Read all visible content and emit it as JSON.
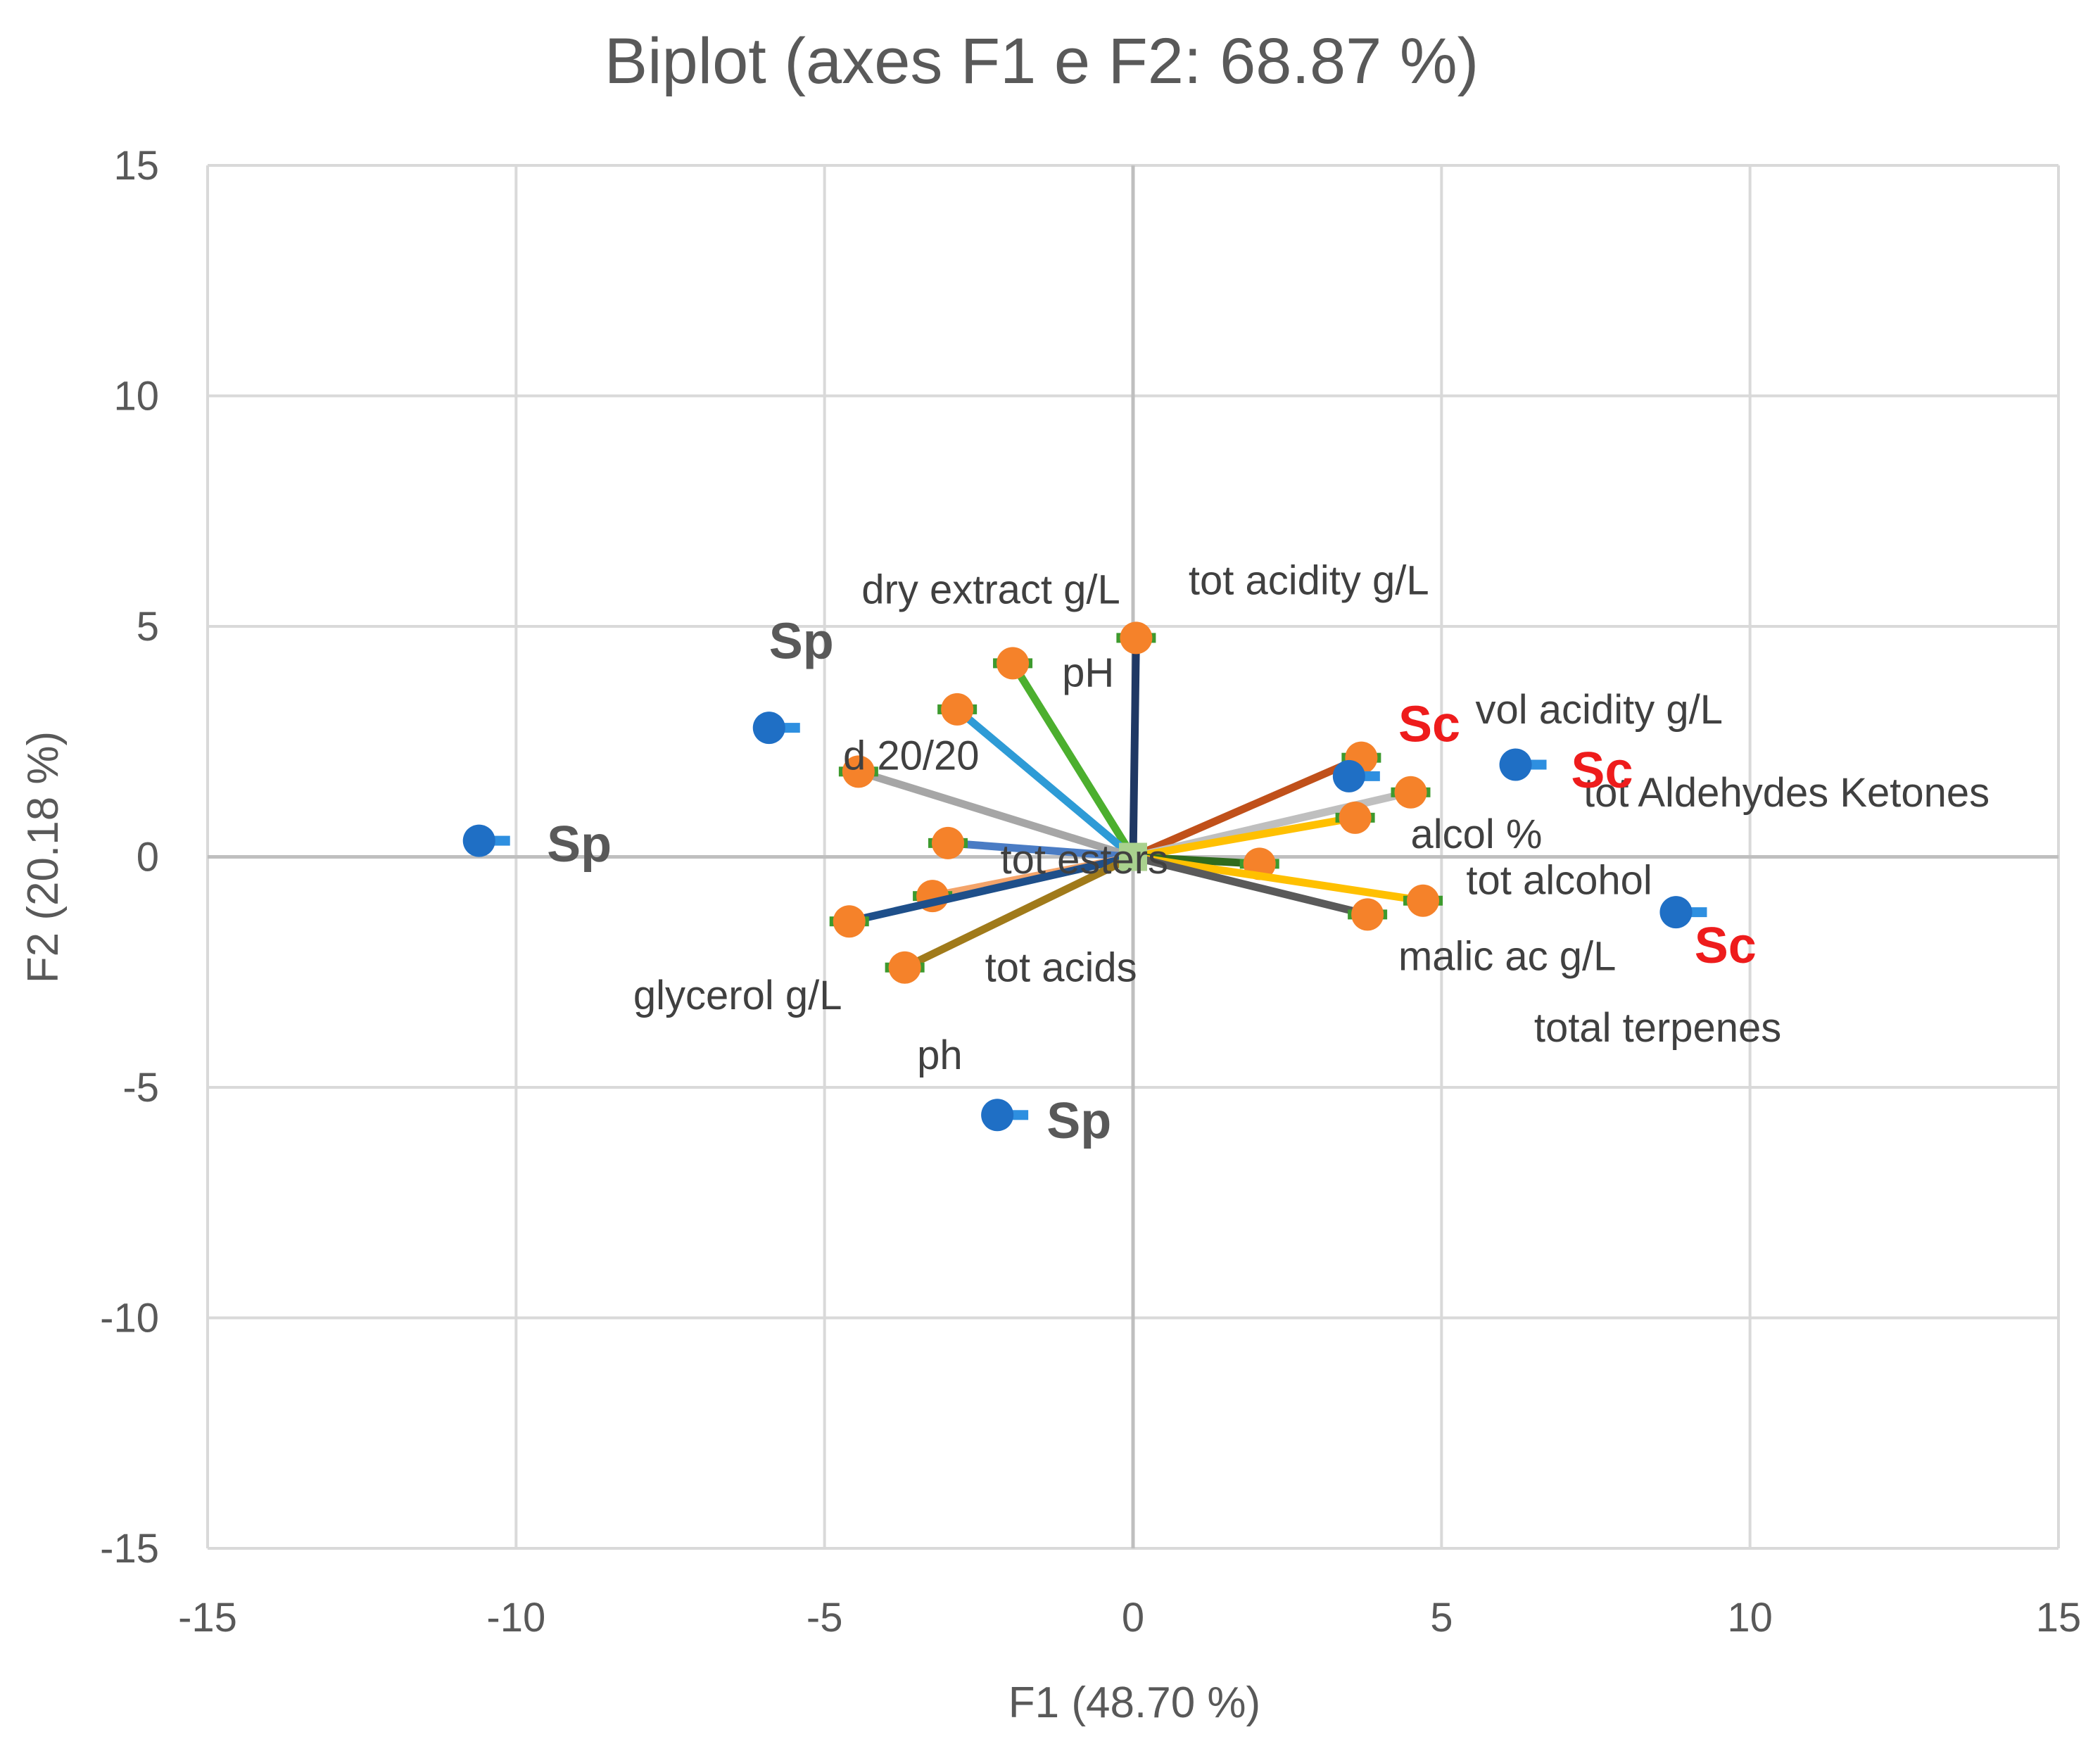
{
  "chart_data": {
    "type": "scatter",
    "title": "Biplot (axes F1 e F2: 68.87 %)",
    "xlabel": "F1 (48.70 %)",
    "ylabel": "F2 (20.18 %)",
    "xlim": [
      -15,
      15
    ],
    "ylim": [
      -15,
      15
    ],
    "xticks": [
      -15,
      -10,
      -5,
      0,
      5,
      10,
      15
    ],
    "yticks": [
      -15,
      -10,
      -5,
      0,
      5,
      10,
      15
    ],
    "grid": true,
    "colors": {
      "observation": "#1f6fc5",
      "variable_point": "#f5822a",
      "variable_point_edge": "#3d9a2e",
      "origin": "#a9d18e",
      "sc_label": "#ee1c1c",
      "sp_label": "#595959",
      "grid": "#d9d9d9",
      "zero_line": "#bfbfbf"
    },
    "observations": [
      {
        "name": "Sp",
        "x": -10.6,
        "y": 0.35
      },
      {
        "name": "Sp",
        "x": -5.9,
        "y": 2.8
      },
      {
        "name": "Sp",
        "x": -2.2,
        "y": -5.6
      },
      {
        "name": "Sc",
        "x": 3.5,
        "y": 1.75
      },
      {
        "name": "Sc",
        "x": 6.2,
        "y": 2.0
      },
      {
        "name": "Sc",
        "x": 8.8,
        "y": -1.2
      }
    ],
    "obs_labels": [
      {
        "text": "Sp",
        "x": -9.5,
        "y": 0.3,
        "group": "sp"
      },
      {
        "text": "Sp",
        "x": -5.9,
        "y": 4.7,
        "group": "sp"
      },
      {
        "text": "Sp",
        "x": -1.4,
        "y": -5.7,
        "group": "sp"
      },
      {
        "text": "Sc",
        "x": 4.3,
        "y": 2.9,
        "group": "sc"
      },
      {
        "text": "Sc",
        "x": 7.1,
        "y": 1.9,
        "group": "sc"
      },
      {
        "text": "Sc",
        "x": 9.1,
        "y": -1.9,
        "group": "sc"
      }
    ],
    "variables": [
      {
        "x": 0.05,
        "y": 4.75,
        "color": "#1f3864"
      },
      {
        "x": -1.95,
        "y": 4.2,
        "color": "#4caf2e"
      },
      {
        "x": -2.85,
        "y": 3.2,
        "color": "#2e9bd6"
      },
      {
        "x": -4.45,
        "y": 1.85,
        "color": "#a6a6a6"
      },
      {
        "x": -3.0,
        "y": 0.3,
        "color": "#4a7cc4"
      },
      {
        "x": -3.25,
        "y": -0.85,
        "color": "#f4a46a"
      },
      {
        "x": -4.6,
        "y": -1.4,
        "color": "#1e4f8a"
      },
      {
        "x": -3.7,
        "y": -2.4,
        "color": "#a07a1a"
      },
      {
        "x": 3.7,
        "y": 2.15,
        "color": "#c0501a"
      },
      {
        "x": 4.5,
        "y": 1.4,
        "color": "#bfbfbf"
      },
      {
        "x": 3.6,
        "y": 0.85,
        "color": "#ffc000"
      },
      {
        "x": 2.05,
        "y": -0.15,
        "color": "#2e6b1e"
      },
      {
        "x": 4.7,
        "y": -0.95,
        "color": "#ffc000"
      },
      {
        "x": 3.8,
        "y": -1.25,
        "color": "#5a5a5a"
      }
    ],
    "variable_labels": [
      {
        "text": "tot acidity g/L",
        "x": 0.9,
        "y": 6.0
      },
      {
        "text": "dry extract g/L",
        "x": -4.4,
        "y": 5.8
      },
      {
        "text": "pH",
        "x": -1.15,
        "y": 4.0
      },
      {
        "text": "d 20/20",
        "x": -4.7,
        "y": 2.2
      },
      {
        "text": "tot esters",
        "x": -2.15,
        "y": -0.05
      },
      {
        "text": "tot acids",
        "x": -2.4,
        "y": -2.4
      },
      {
        "text": "glycerol g/L",
        "x": -8.1,
        "y": -3.0
      },
      {
        "text": "ph",
        "x": -3.5,
        "y": -4.3
      },
      {
        "text": "vol acidity g/L",
        "x": 5.55,
        "y": 3.2
      },
      {
        "text": "tot Aldehydes Ketones",
        "x": 7.3,
        "y": 1.4
      },
      {
        "text": "alcol %",
        "x": 4.5,
        "y": 0.5
      },
      {
        "text": "tot alcohol",
        "x": 5.4,
        "y": -0.5
      },
      {
        "text": "malic ac g/L",
        "x": 4.3,
        "y": -2.15
      },
      {
        "text": "total terpenes",
        "x": 6.5,
        "y": -3.7
      }
    ]
  }
}
